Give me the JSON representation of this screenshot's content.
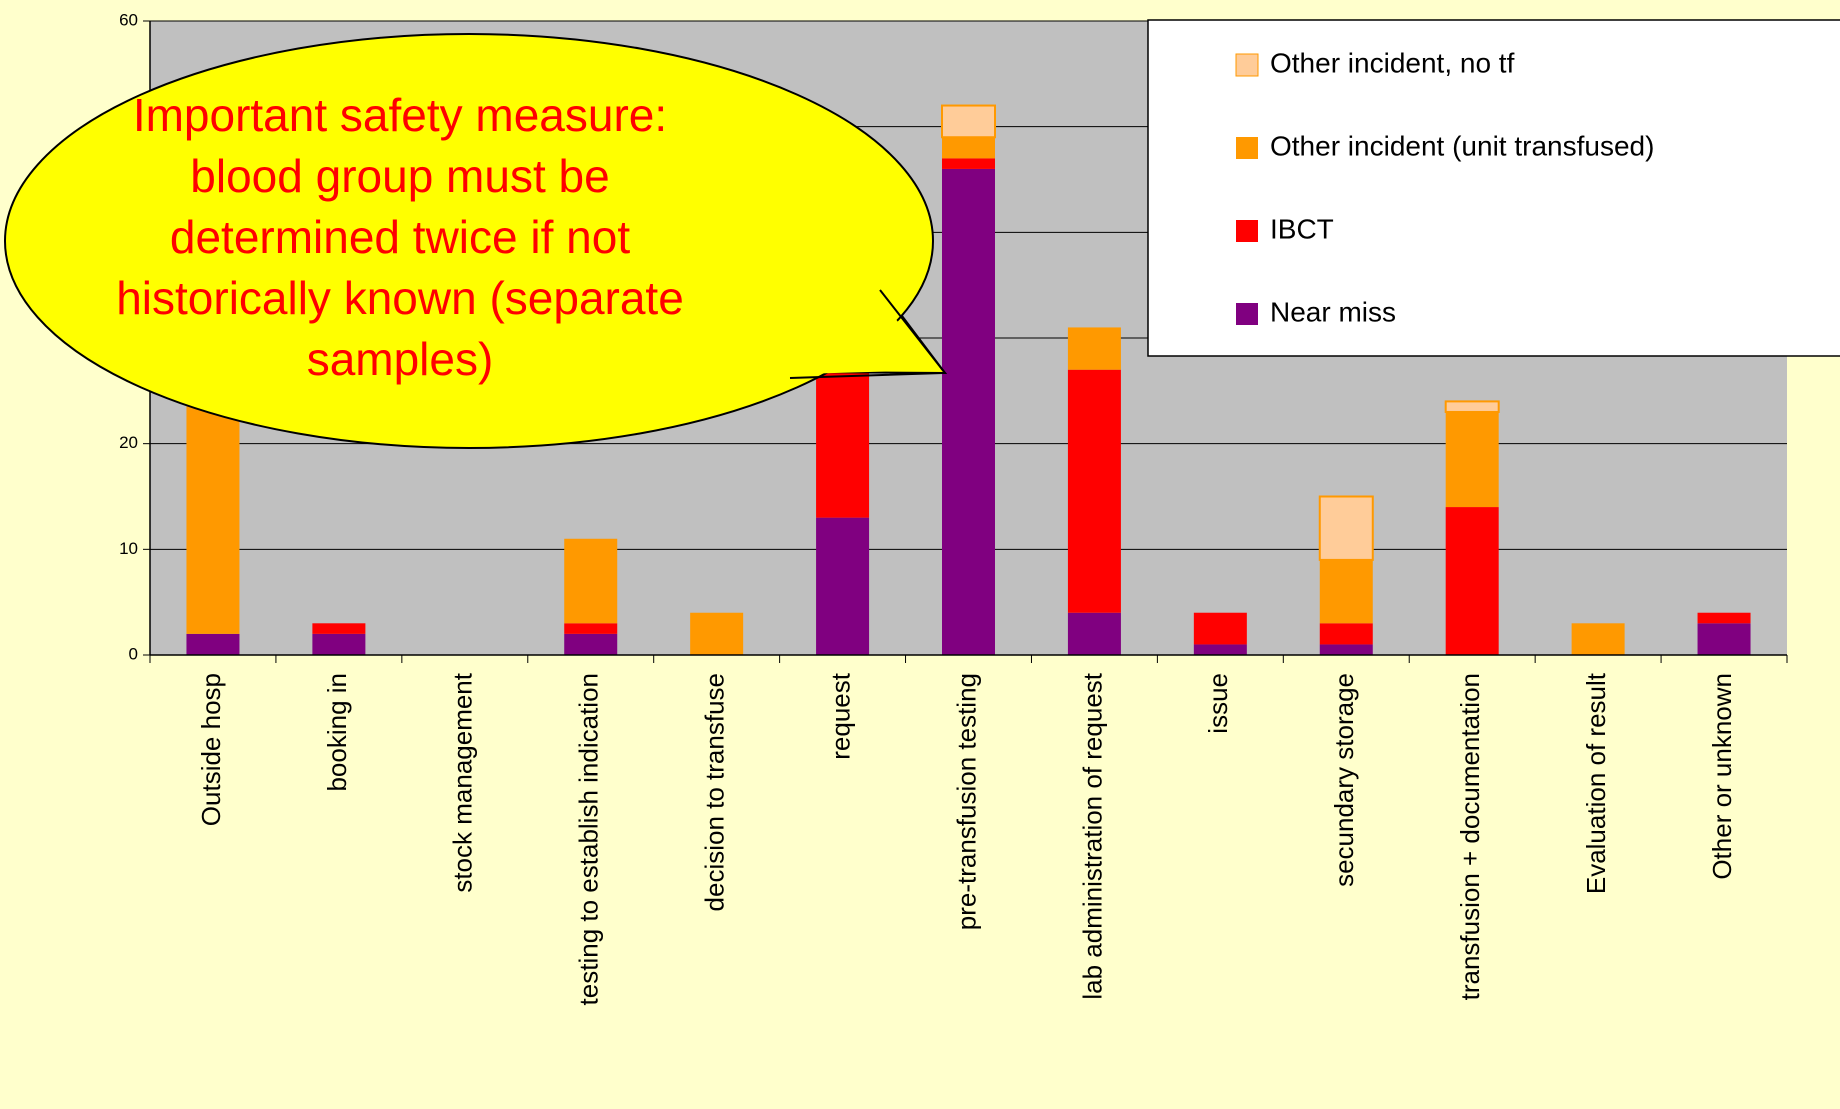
{
  "chart_data": {
    "type": "bar",
    "stacked": true,
    "categories": [
      "Outside hosp",
      "booking in",
      "stock management",
      "testing to establish indication",
      "decision to transfuse",
      "request",
      "pre-transfusion testing",
      "lab administration of request",
      "issue",
      "secundary storage",
      "transfusion + documentation",
      "Evaluation of result",
      "Other or unknown"
    ],
    "series": [
      {
        "name": "Near miss",
        "color": "#800080",
        "values": [
          2,
          2,
          0,
          2,
          0,
          13,
          46,
          4,
          1,
          1,
          0,
          0,
          3
        ]
      },
      {
        "name": "IBCT",
        "color": "#ff0000",
        "values": [
          0,
          1,
          0,
          1,
          0,
          15,
          1,
          23,
          3,
          2,
          14,
          0,
          1
        ]
      },
      {
        "name": "Other incident (unit transfused)",
        "color": "#ff9900",
        "values": [
          23,
          0,
          0,
          8,
          4,
          0,
          2,
          4,
          0,
          6,
          9,
          3,
          0
        ]
      },
      {
        "name": "Other incident, no tf",
        "color": "#ffcc99",
        "values": [
          0,
          0,
          0,
          0,
          0,
          0,
          3,
          0,
          0,
          6,
          1,
          0,
          0
        ]
      }
    ],
    "ylim": [
      0,
      60
    ],
    "yticks": [
      0,
      10,
      20,
      30,
      40,
      50,
      60
    ],
    "grid": true,
    "annotation": [
      "Important safety measure:",
      "blood group must be",
      "determined twice if not",
      "historically known (separate",
      "samples)"
    ]
  }
}
